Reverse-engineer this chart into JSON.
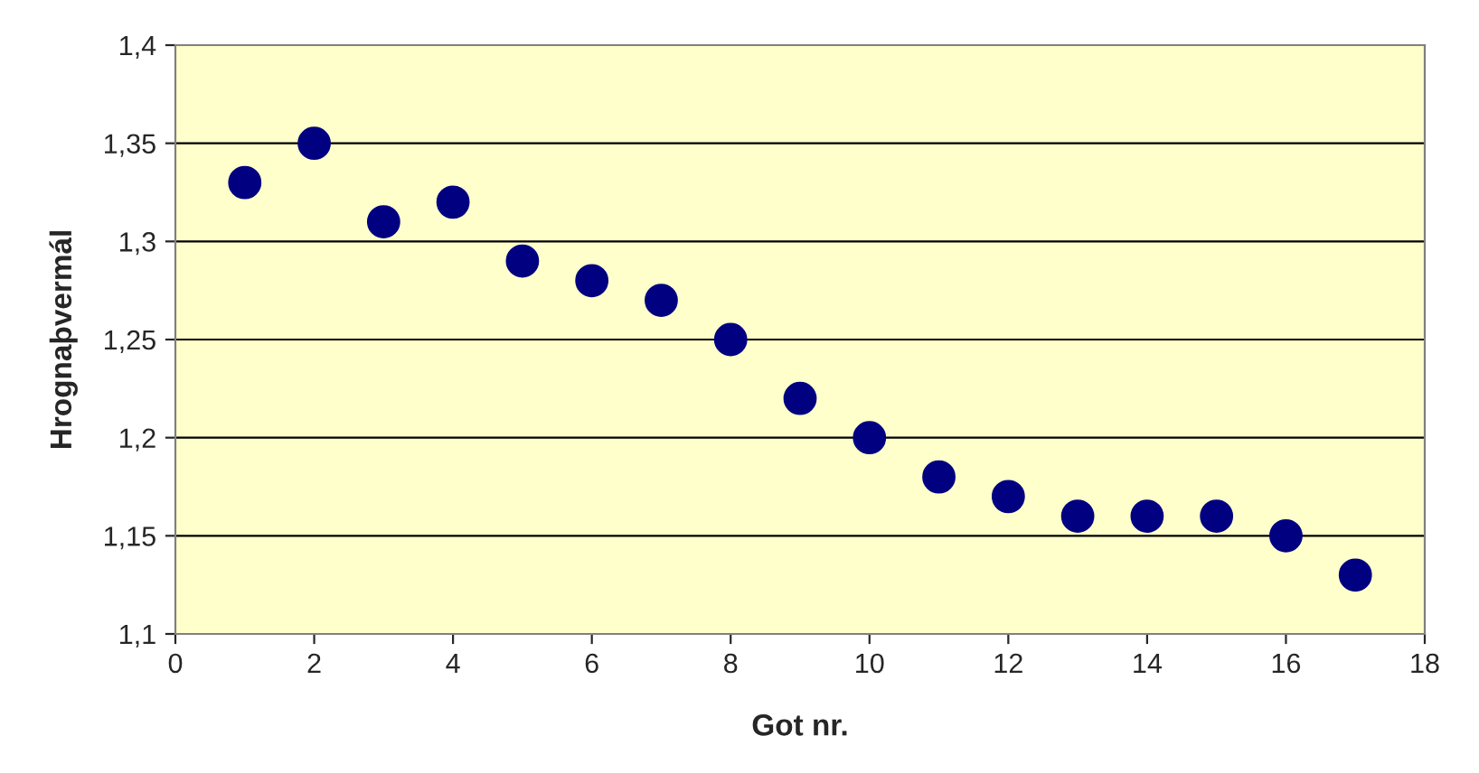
{
  "chart_data": {
    "type": "scatter",
    "xlabel": "Got nr.",
    "ylabel": "Hrognaþvermál",
    "x": [
      1,
      2,
      3,
      4,
      5,
      6,
      7,
      8,
      9,
      10,
      11,
      12,
      13,
      14,
      15,
      16,
      17
    ],
    "series": [
      {
        "color": "#000080",
        "values": [
          1.33,
          1.35,
          1.31,
          1.32,
          1.29,
          1.28,
          1.27,
          1.25,
          1.22,
          1.2,
          1.18,
          1.17,
          1.16,
          1.16,
          1.16,
          1.15,
          1.13
        ]
      }
    ],
    "xlim": [
      0,
      18
    ],
    "xticks": [
      0,
      2,
      4,
      6,
      8,
      10,
      12,
      14,
      16,
      18
    ],
    "ylim": [
      1.1,
      1.4
    ],
    "yticks": [
      {
        "value": 1.1,
        "label": "1,1"
      },
      {
        "value": 1.15,
        "label": "1,15"
      },
      {
        "value": 1.2,
        "label": "1,2"
      },
      {
        "value": 1.25,
        "label": "1,25"
      },
      {
        "value": 1.3,
        "label": "1,3"
      },
      {
        "value": 1.35,
        "label": "1,35"
      },
      {
        "value": 1.4,
        "label": "1,4"
      }
    ],
    "grid": "y",
    "marker": "circle",
    "legend": false
  }
}
